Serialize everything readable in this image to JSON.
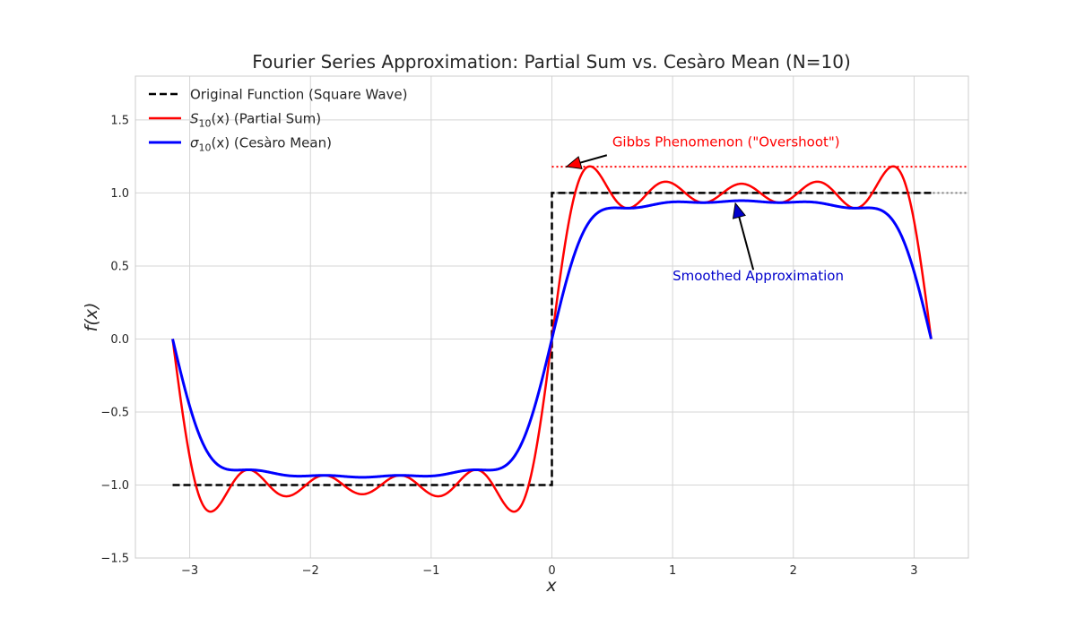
{
  "chart_data": {
    "type": "line",
    "title": "Fourier Series Approximation: Partial Sum vs. Cesàro Mean (N=10)",
    "xlabel": "x",
    "ylabel": "f(x)",
    "xlim": [
      -3.45,
      3.45
    ],
    "ylim": [
      -1.5,
      1.8
    ],
    "x_ticks": [
      -3,
      -2,
      -1,
      0,
      1,
      2,
      3
    ],
    "x_tick_labels": [
      "−3",
      "−2",
      "−1",
      "0",
      "1",
      "2",
      "3"
    ],
    "y_ticks": [
      -1.5,
      -1.0,
      -0.5,
      0.0,
      0.5,
      1.0,
      1.5
    ],
    "y_tick_labels": [
      "−1.5",
      "−1.0",
      "−0.5",
      "0.0",
      "0.5",
      "1.0",
      "1.5"
    ],
    "grid": true,
    "legend_position": "top-left",
    "N": 10,
    "x_range": [
      -3.14159,
      3.14159
    ],
    "series": [
      {
        "name": "Original Function (Square Wave)",
        "kind": "square-wave",
        "color": "#000000",
        "style": "dashed",
        "points": [
          [
            -3.14159,
            -1.0
          ],
          [
            0.0,
            -1.0
          ],
          [
            0.0,
            1.0
          ],
          [
            3.14159,
            1.0
          ]
        ]
      },
      {
        "name": "Partial Sum",
        "kind": "fourier-partial-sum",
        "color": "#ff0000",
        "style": "solid",
        "sample_points": [
          [
            -3.14,
            0.0
          ],
          [
            -2.83,
            -1.18
          ],
          [
            -2.2,
            -1.07
          ],
          [
            -1.57,
            -1.06
          ],
          [
            -0.94,
            -1.07
          ],
          [
            -0.31,
            -1.18
          ],
          [
            0.0,
            0.0
          ],
          [
            0.31,
            1.18
          ],
          [
            0.94,
            1.07
          ],
          [
            1.57,
            1.06
          ],
          [
            2.2,
            1.07
          ],
          [
            2.83,
            1.18
          ],
          [
            3.14,
            0.0
          ]
        ]
      },
      {
        "name": "Cesàro Mean",
        "kind": "cesaro-mean",
        "color": "#0000ff",
        "style": "solid",
        "sample_points": [
          [
            -3.14,
            0.0
          ],
          [
            -2.6,
            -0.9
          ],
          [
            -1.57,
            -0.94
          ],
          [
            -0.55,
            -0.9
          ],
          [
            0.0,
            0.0
          ],
          [
            0.55,
            0.9
          ],
          [
            1.57,
            0.94
          ],
          [
            2.6,
            0.9
          ],
          [
            3.14,
            0.0
          ]
        ]
      }
    ],
    "legend_entries": [
      {
        "label": "Original Function (Square Wave)",
        "color": "#000000",
        "style": "dashed"
      },
      {
        "label_base": "S",
        "label_sub": "10",
        "label_rest": "(x) (Partial Sum)",
        "color": "#ff0000",
        "style": "solid"
      },
      {
        "label_base": "σ",
        "label_sub": "10",
        "label_rest": "(x) (Cesàro Mean)",
        "color": "#0000ff",
        "style": "solid"
      }
    ],
    "reference_lines": [
      {
        "y": 1.18,
        "color": "#ff0000",
        "style": "dotted",
        "x_start": 0.0
      },
      {
        "y": 1.0,
        "color": "#808080",
        "style": "dotted",
        "x_start": 0.0
      }
    ],
    "annotations": [
      {
        "text": "Gibbs Phenomenon (\"Overshoot\")",
        "color": "#ff0000",
        "text_at": [
          0.5,
          1.32
        ],
        "arrow_to": [
          0.12,
          1.18
        ]
      },
      {
        "text": "Smoothed Approximation",
        "color": "#0000cc",
        "text_at": [
          1.0,
          0.4
        ],
        "arrow_to": [
          1.52,
          0.93
        ]
      }
    ]
  }
}
